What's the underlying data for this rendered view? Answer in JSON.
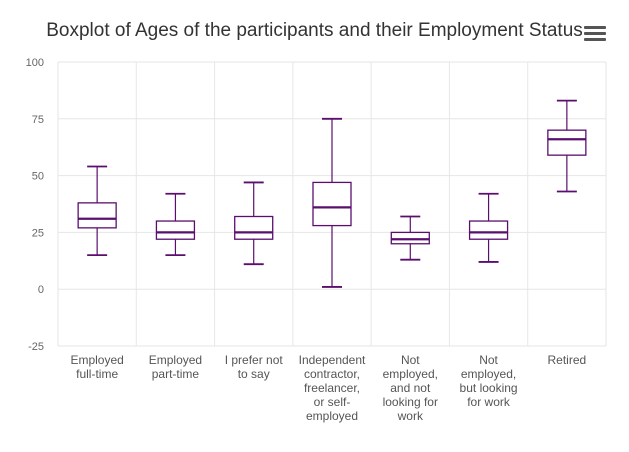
{
  "chart_data": {
    "type": "boxplot",
    "title": "Boxplot of Ages of the participants and their Employment Status",
    "xlabel": "",
    "ylabel": "",
    "ylim": [
      -25,
      100
    ],
    "yticks": [
      -25,
      0,
      25,
      50,
      75,
      100
    ],
    "grid": true,
    "legend": "none",
    "color": "#5a0f6e",
    "categories": [
      [
        "Employed",
        "full-time"
      ],
      [
        "Employed",
        "part-time"
      ],
      [
        "I prefer not",
        "to say"
      ],
      [
        "Independent",
        "contractor,",
        "freelancer,",
        "or self-",
        "employed"
      ],
      [
        "Not",
        "employed,",
        "and not",
        "looking for",
        "work"
      ],
      [
        "Not",
        "employed,",
        "but looking",
        "for work"
      ],
      [
        "Retired"
      ]
    ],
    "boxes": [
      {
        "min": 15,
        "q1": 27,
        "median": 31,
        "q3": 38,
        "max": 54
      },
      {
        "min": 15,
        "q1": 22,
        "median": 25,
        "q3": 30,
        "max": 42
      },
      {
        "min": 11,
        "q1": 22,
        "median": 25,
        "q3": 32,
        "max": 47
      },
      {
        "min": 1,
        "q1": 28,
        "median": 36,
        "q3": 47,
        "max": 75
      },
      {
        "min": 13,
        "q1": 20,
        "median": 22,
        "q3": 25,
        "max": 32
      },
      {
        "min": 12,
        "q1": 22,
        "median": 25,
        "q3": 30,
        "max": 42
      },
      {
        "min": 43,
        "q1": 59,
        "median": 66,
        "q3": 70,
        "max": 83
      }
    ]
  },
  "toolbar": {
    "menu_icon": "hamburger-menu-icon"
  }
}
